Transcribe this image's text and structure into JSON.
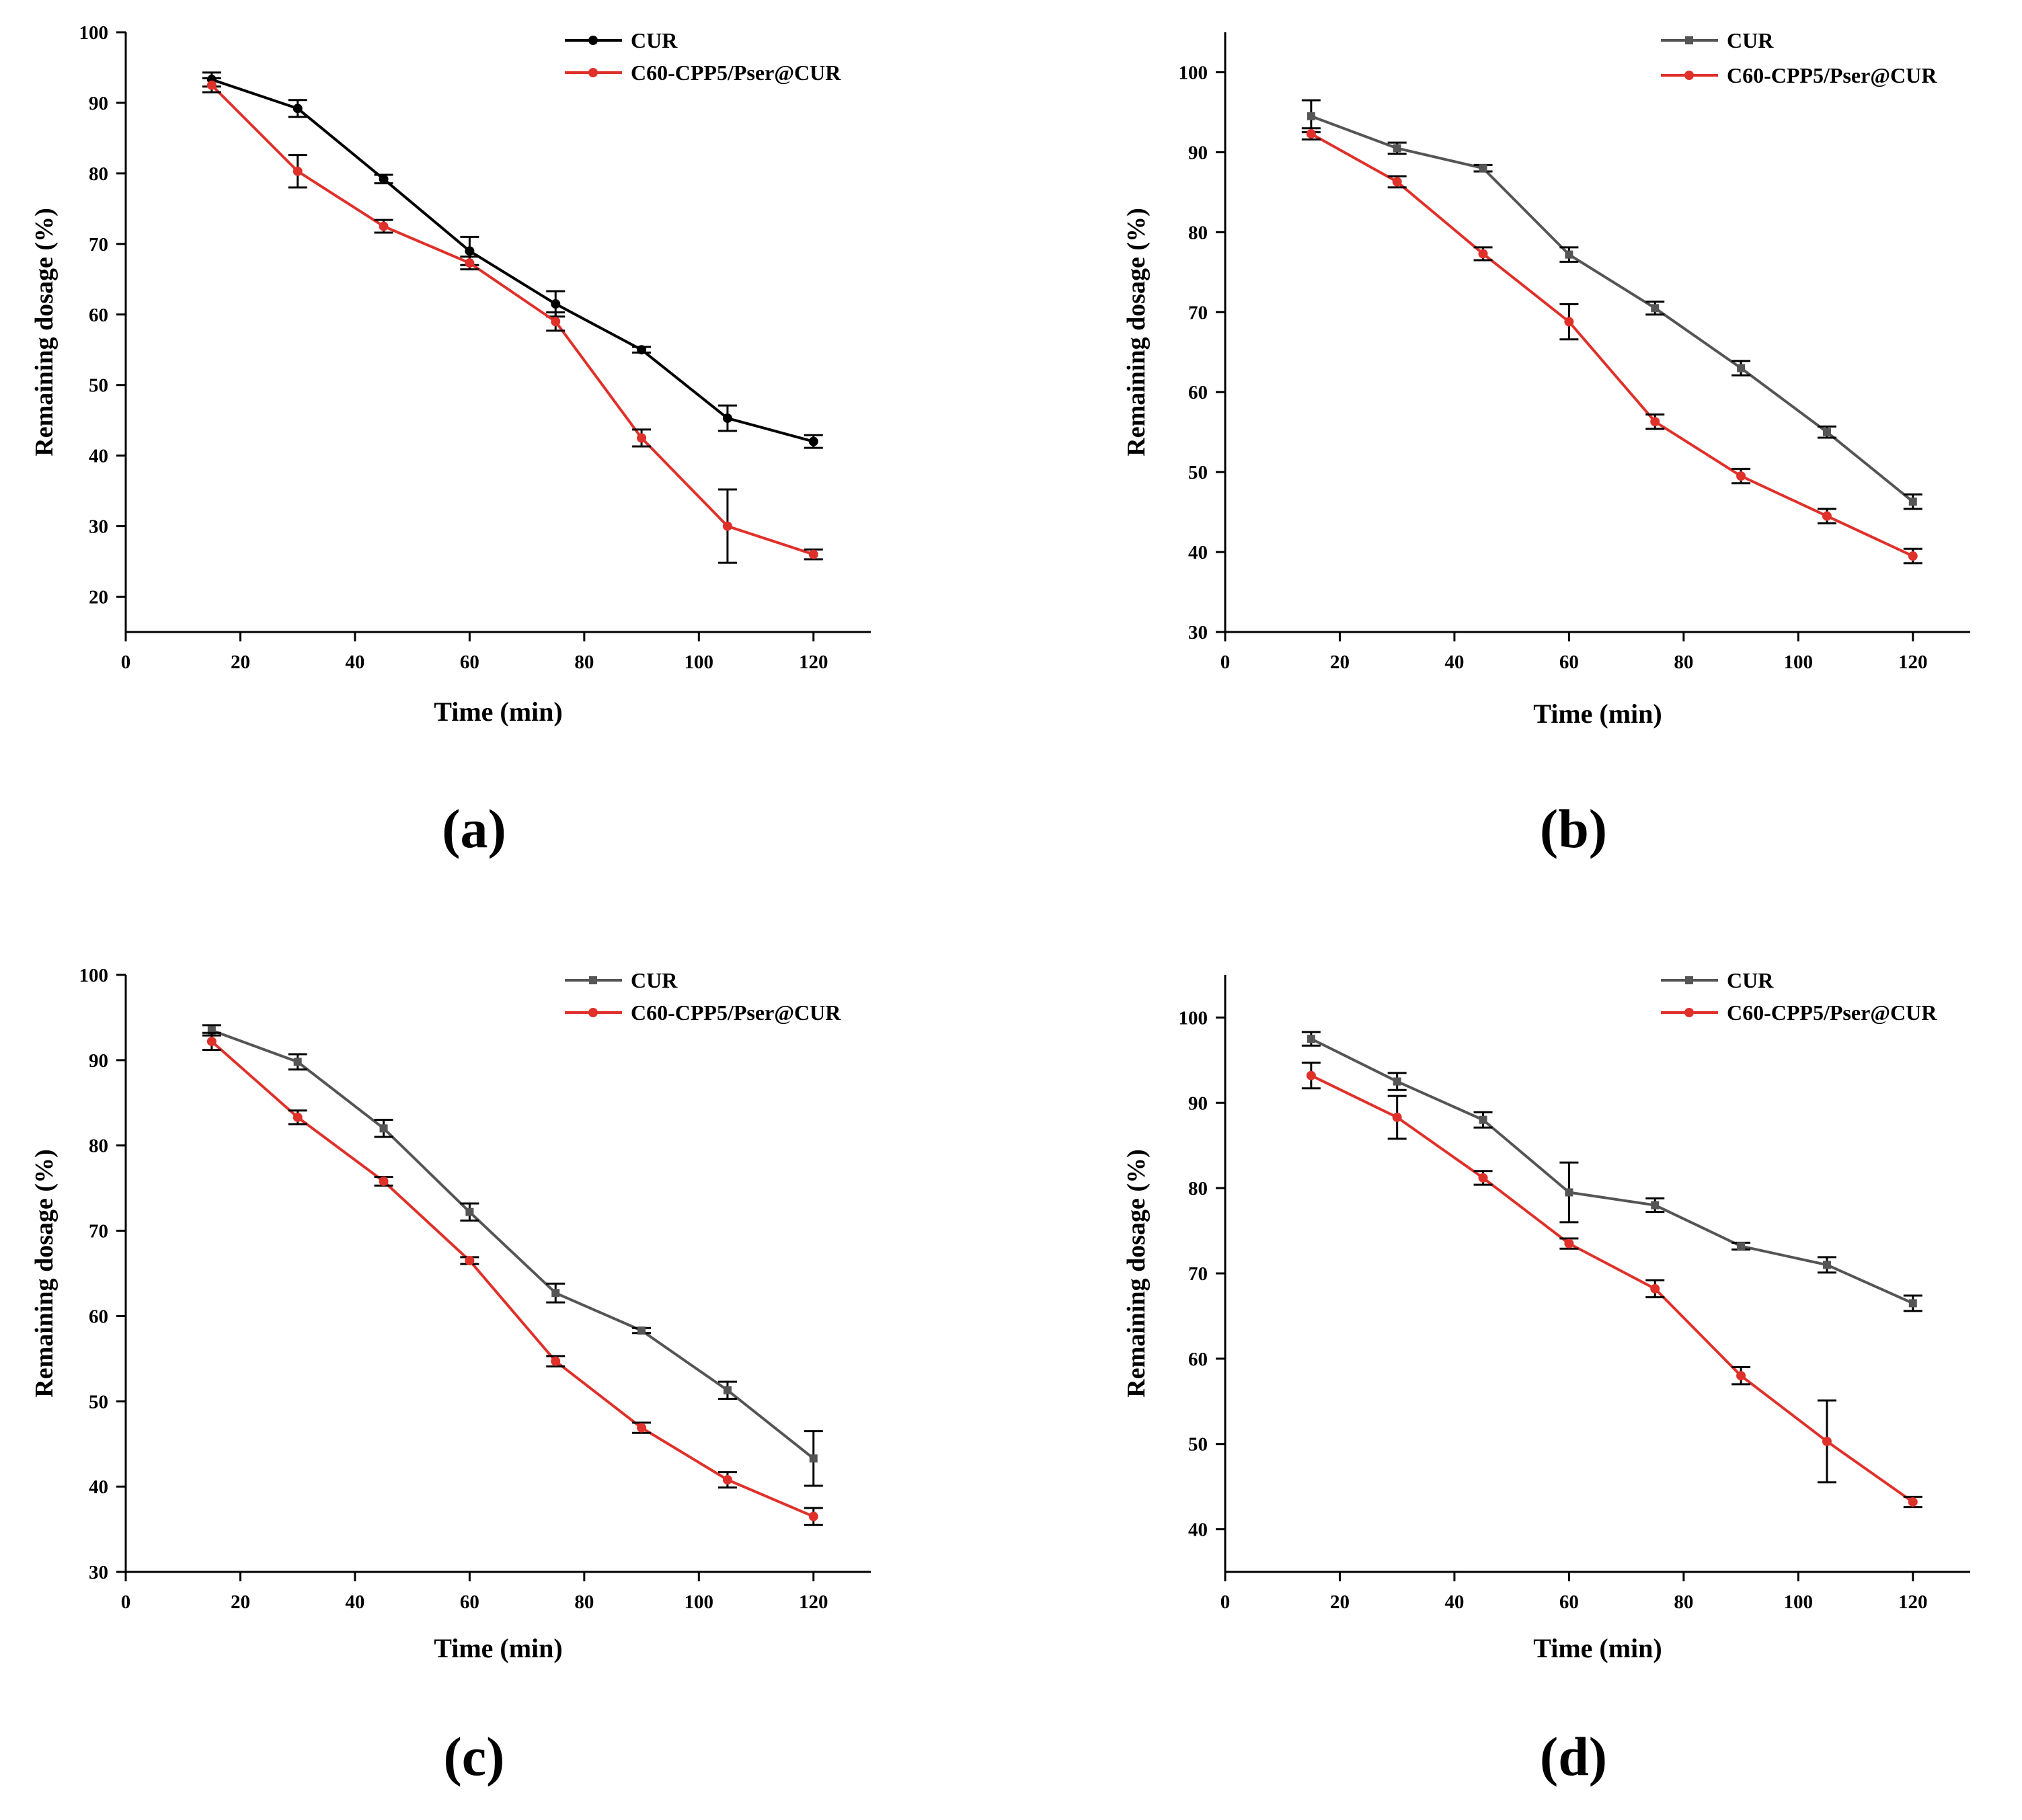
{
  "colors": {
    "cur_a": "#000000",
    "cur_bcd": "#555555",
    "nano": "#e0302a",
    "axis": "#000000"
  },
  "chart_data": [
    {
      "id": "a",
      "type": "line",
      "panel_label": "(a)",
      "xlabel": "Time (min)",
      "ylabel": "Remaining dosage (%)",
      "xlim": [
        0,
        130
      ],
      "ylim": [
        15,
        100
      ],
      "xticks": [
        0,
        20,
        40,
        60,
        80,
        100,
        120
      ],
      "yticks": [
        20,
        30,
        40,
        50,
        60,
        70,
        80,
        90,
        100
      ],
      "x": [
        15,
        30,
        45,
        60,
        75,
        90,
        105,
        120
      ],
      "series": [
        {
          "name": "CUR",
          "color": "#000000",
          "marker": "circle",
          "values": [
            93.3,
            89.2,
            79.2,
            69.0,
            61.5,
            55.0,
            45.3,
            42.0
          ],
          "errors": [
            1.0,
            1.2,
            0.6,
            2.0,
            1.8,
            0.4,
            1.8,
            0.9
          ]
        },
        {
          "name": "C60-CPP5/Pser@CUR",
          "color": "#e0302a",
          "marker": "circle",
          "values": [
            92.5,
            80.3,
            72.5,
            67.3,
            59.0,
            42.5,
            30.0,
            26.0
          ],
          "errors": [
            1.0,
            2.3,
            0.9,
            0.9,
            1.3,
            1.2,
            5.2,
            0.7
          ]
        }
      ]
    },
    {
      "id": "b",
      "type": "line",
      "panel_label": "(b)",
      "xlabel": "Time (min)",
      "ylabel": "Remaining dosage (%)",
      "xlim": [
        0,
        130
      ],
      "ylim": [
        30,
        105
      ],
      "xticks": [
        0,
        20,
        40,
        60,
        80,
        100,
        120
      ],
      "yticks": [
        30,
        40,
        50,
        60,
        70,
        80,
        90,
        100
      ],
      "x": [
        15,
        30,
        45,
        60,
        75,
        90,
        105,
        120
      ],
      "series": [
        {
          "name": "CUR",
          "color": "#555555",
          "marker": "square",
          "values": [
            94.5,
            90.5,
            88.0,
            77.2,
            70.5,
            63.0,
            55.0,
            46.3
          ],
          "errors": [
            2.0,
            0.7,
            0.4,
            0.9,
            0.8,
            0.9,
            0.7,
            0.9
          ]
        },
        {
          "name": "C60-CPP5/Pser@CUR",
          "color": "#e0302a",
          "marker": "circle",
          "values": [
            92.3,
            86.3,
            77.3,
            68.8,
            56.3,
            49.5,
            44.5,
            39.5
          ],
          "errors": [
            0.7,
            0.7,
            0.8,
            2.2,
            0.9,
            0.9,
            0.9,
            0.9
          ]
        }
      ]
    },
    {
      "id": "c",
      "type": "line",
      "panel_label": "(c)",
      "xlabel": "Time (min)",
      "ylabel": "Remaining dosage (%)",
      "xlim": [
        0,
        130
      ],
      "ylim": [
        30,
        100
      ],
      "xticks": [
        0,
        20,
        40,
        60,
        80,
        100,
        120
      ],
      "yticks": [
        30,
        40,
        50,
        60,
        70,
        80,
        90,
        100
      ],
      "x": [
        15,
        30,
        45,
        60,
        75,
        90,
        105,
        120
      ],
      "series": [
        {
          "name": "CUR",
          "color": "#555555",
          "marker": "square",
          "values": [
            93.5,
            89.8,
            82.0,
            72.2,
            62.7,
            58.3,
            51.3,
            43.3
          ],
          "errors": [
            0.6,
            0.9,
            1.0,
            1.0,
            1.1,
            0.3,
            1.0,
            3.2
          ]
        },
        {
          "name": "C60-CPP5/Pser@CUR",
          "color": "#e0302a",
          "marker": "circle",
          "values": [
            92.2,
            83.3,
            75.8,
            66.5,
            54.7,
            46.9,
            40.8,
            36.5
          ],
          "errors": [
            1.0,
            0.8,
            0.5,
            0.4,
            0.6,
            0.6,
            0.9,
            1.0
          ]
        }
      ]
    },
    {
      "id": "d",
      "type": "line",
      "panel_label": "(d)",
      "xlabel": "Time (min)",
      "ylabel": "Remaining dosage (%)",
      "xlim": [
        0,
        130
      ],
      "ylim": [
        35,
        105
      ],
      "xticks": [
        0,
        20,
        40,
        60,
        80,
        100,
        120
      ],
      "yticks": [
        40,
        50,
        60,
        70,
        80,
        90,
        100
      ],
      "x": [
        15,
        30,
        45,
        60,
        75,
        90,
        105,
        120
      ],
      "series": [
        {
          "name": "CUR",
          "color": "#555555",
          "marker": "square",
          "values": [
            97.5,
            92.5,
            88.0,
            79.5,
            78.0,
            73.2,
            71.0,
            66.5
          ],
          "errors": [
            0.8,
            1.0,
            0.9,
            3.5,
            0.8,
            0.4,
            0.9,
            0.9
          ]
        },
        {
          "name": "C60-CPP5/Pser@CUR",
          "color": "#e0302a",
          "marker": "circle",
          "values": [
            93.2,
            88.3,
            81.2,
            73.5,
            68.2,
            58.0,
            50.3,
            43.2
          ],
          "errors": [
            1.5,
            2.5,
            0.8,
            0.6,
            1.0,
            1.0,
            4.8,
            0.6
          ]
        }
      ]
    }
  ]
}
